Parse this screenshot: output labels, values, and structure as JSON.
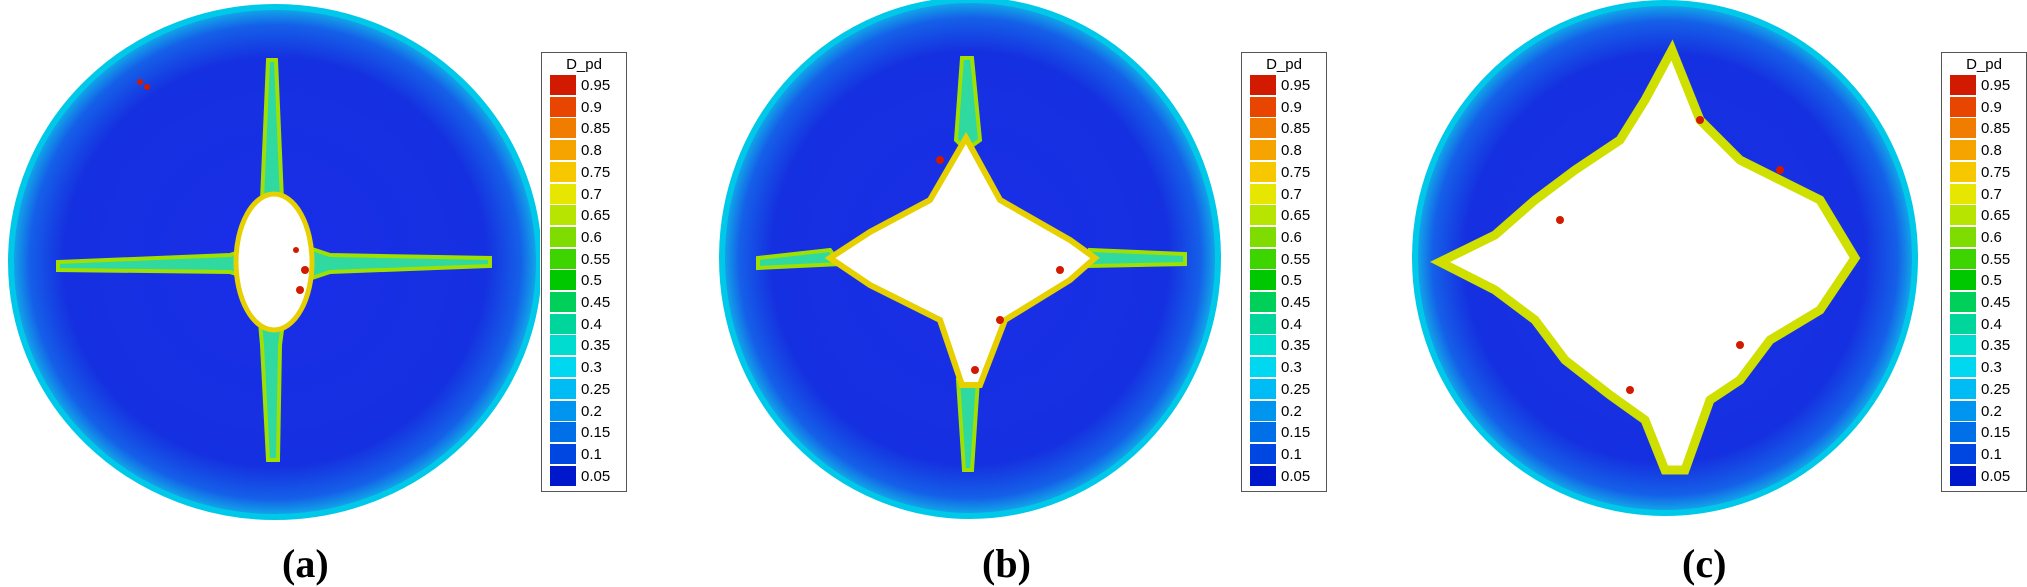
{
  "legend": {
    "title": "D_pd",
    "entries": [
      {
        "label": "0.95",
        "color": "#d11a00"
      },
      {
        "label": "0.9",
        "color": "#e84500"
      },
      {
        "label": "0.85",
        "color": "#f07c00"
      },
      {
        "label": "0.8",
        "color": "#f5a400"
      },
      {
        "label": "0.75",
        "color": "#f7c800"
      },
      {
        "label": "0.7",
        "color": "#e6e600"
      },
      {
        "label": "0.65",
        "color": "#b7e400"
      },
      {
        "label": "0.6",
        "color": "#7fdc00"
      },
      {
        "label": "0.55",
        "color": "#3dd400"
      },
      {
        "label": "0.5",
        "color": "#00c800"
      },
      {
        "label": "0.45",
        "color": "#00d05a"
      },
      {
        "label": "0.4",
        "color": "#00d69c"
      },
      {
        "label": "0.35",
        "color": "#00dccf"
      },
      {
        "label": "0.3",
        "color": "#00d8f2"
      },
      {
        "label": "0.25",
        "color": "#00bcf4"
      },
      {
        "label": "0.2",
        "color": "#0096f0"
      },
      {
        "label": "0.15",
        "color": "#0070e8"
      },
      {
        "label": "0.1",
        "color": "#0046e0"
      },
      {
        "label": "0.05",
        "color": "#0018cc"
      }
    ]
  },
  "panels": [
    {
      "caption": "(a)"
    },
    {
      "caption": "(b)"
    },
    {
      "caption": "(c)"
    }
  ]
}
